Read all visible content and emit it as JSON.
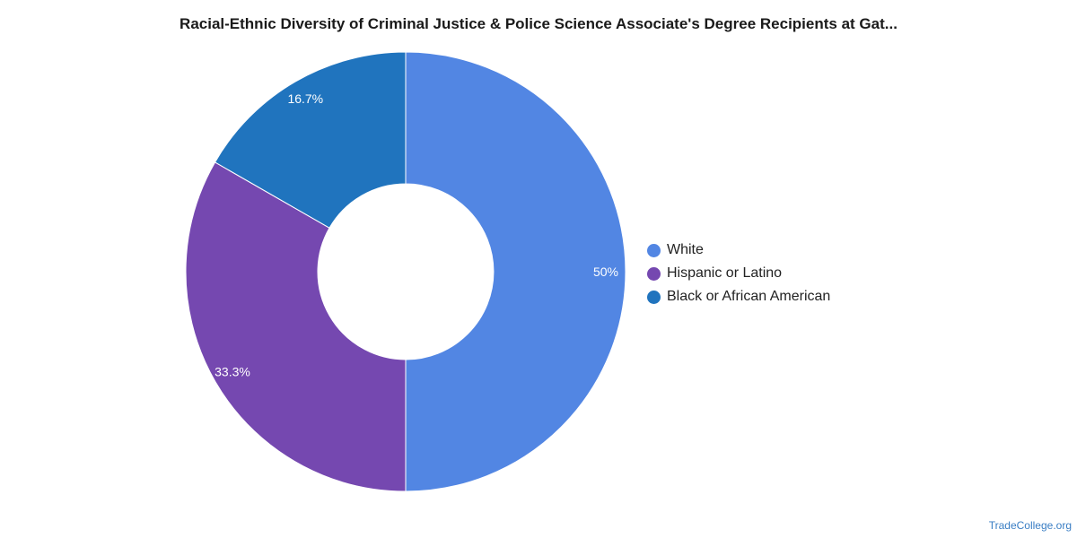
{
  "title": "Racial-Ethnic Diversity of Criminal Justice & Police Science Associate's Degree Recipients at Gat...",
  "source": "TradeCollege.org",
  "chart_data": {
    "type": "pie",
    "donut": true,
    "legend_position": "right",
    "slices": [
      {
        "label": "White",
        "value": 50,
        "display": "50%",
        "color": "#5286E3"
      },
      {
        "label": "Hispanic or Latino",
        "value": 33.3,
        "display": "33.3%",
        "color": "#7548B0"
      },
      {
        "label": "Black or African American",
        "value": 16.7,
        "display": "16.7%",
        "color": "#2074BE"
      }
    ]
  }
}
